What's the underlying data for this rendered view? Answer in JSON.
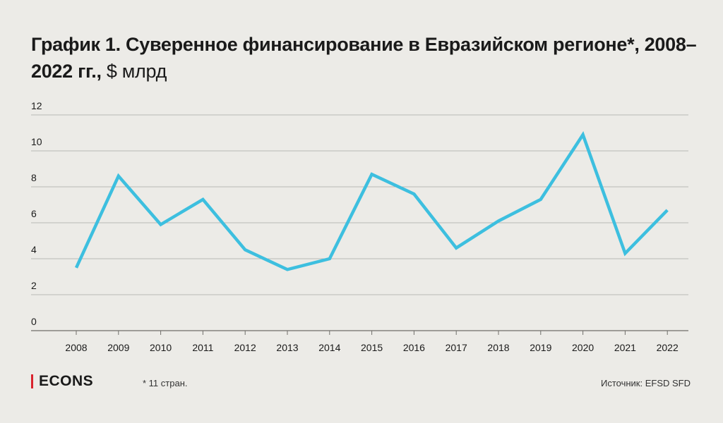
{
  "title": {
    "bold_part": "График 1. Суверенное финансирование в Евразийском регионе*, 2008–2022 гг.,",
    "unit_part": " $ млрд"
  },
  "footer": {
    "logo": "ECONS",
    "footnote": "* 11 стран.",
    "source": "Источник: EFSD SFD"
  },
  "colors": {
    "line": "#3dbfdf",
    "grid": "#b9b8b4",
    "background": "#ecebe7",
    "logo_accent": "#d9232e"
  },
  "chart_data": {
    "type": "line",
    "categories": [
      "2008",
      "2009",
      "2010",
      "2011",
      "2012",
      "2013",
      "2014",
      "2015",
      "2016",
      "2017",
      "2018",
      "2019",
      "2020",
      "2021",
      "2022"
    ],
    "series": [
      {
        "values": [
          3.5,
          8.6,
          5.9,
          7.3,
          4.5,
          3.4,
          4.0,
          8.7,
          7.6,
          4.6,
          6.1,
          7.3,
          10.9,
          4.3,
          6.7
        ]
      }
    ],
    "yticks": [
      "0",
      "2",
      "4",
      "6",
      "8",
      "10",
      "12"
    ],
    "ylim": [
      0,
      12
    ],
    "grid": true
  }
}
